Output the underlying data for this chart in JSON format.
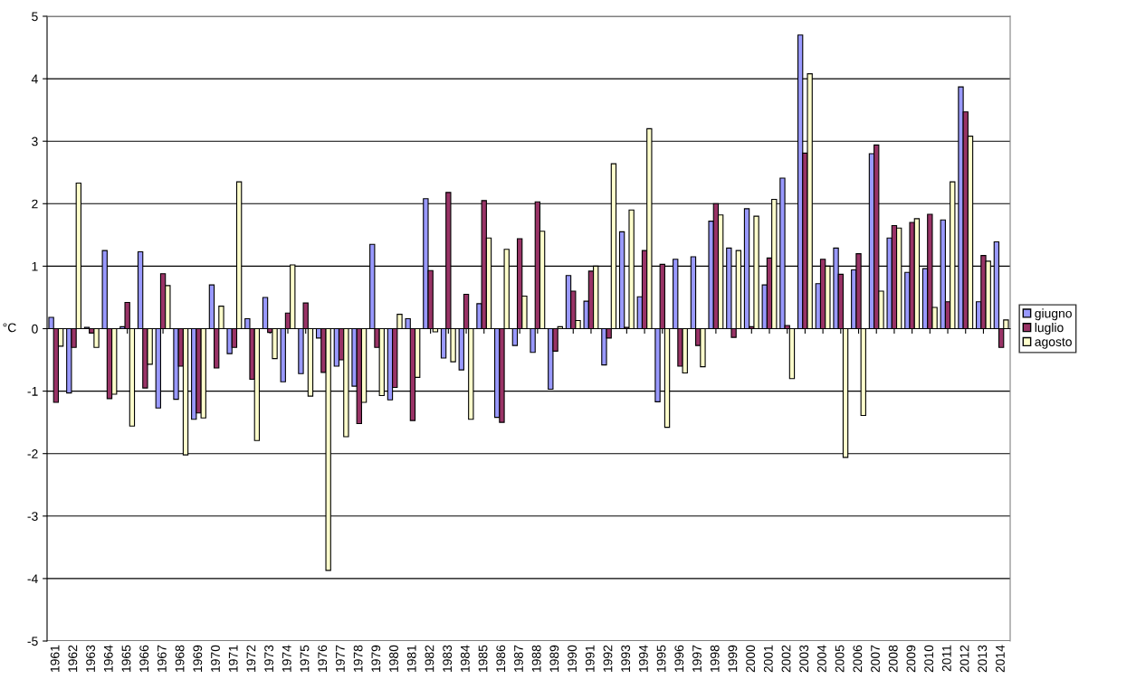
{
  "chart_data": {
    "type": "bar",
    "ylabel": "°C",
    "categories": [
      "1961",
      "1962",
      "1963",
      "1964",
      "1965",
      "1966",
      "1967",
      "1968",
      "1969",
      "1970",
      "1971",
      "1972",
      "1973",
      "1974",
      "1975",
      "1976",
      "1977",
      "1978",
      "1979",
      "1980",
      "1981",
      "1982",
      "1983",
      "1984",
      "1985",
      "1986",
      "1987",
      "1988",
      "1989",
      "1990",
      "1991",
      "1992",
      "1993",
      "1994",
      "1995",
      "1996",
      "1997",
      "1998",
      "1999",
      "2000",
      "2001",
      "2002",
      "2003",
      "2004",
      "2005",
      "2006",
      "2007",
      "2008",
      "2009",
      "2010",
      "2011",
      "2012",
      "2013",
      "2014"
    ],
    "series": [
      {
        "name": "giugno",
        "color": "#9999ff",
        "values": [
          0.18,
          -1.03,
          0.02,
          1.25,
          0.03,
          1.23,
          -1.27,
          -1.13,
          -1.45,
          0.7,
          -0.4,
          0.16,
          0.5,
          -0.85,
          -0.72,
          -0.15,
          -0.6,
          -0.92,
          1.35,
          -1.14,
          0.16,
          2.08,
          -0.47,
          -0.66,
          0.4,
          -1.42,
          -0.27,
          -0.38,
          -0.97,
          0.85,
          0.44,
          -0.58,
          1.55,
          0.51,
          -1.17,
          1.11,
          1.15,
          1.72,
          1.29,
          1.92,
          0.7,
          2.41,
          4.7,
          0.72,
          1.29,
          0.94,
          2.8,
          1.45,
          0.9,
          0.96,
          1.74,
          3.87,
          0.43,
          1.39
        ]
      },
      {
        "name": "luglio",
        "color": "#993366",
        "values": [
          -1.18,
          -0.3,
          -0.07,
          -1.12,
          0.42,
          -0.95,
          0.88,
          -0.6,
          -1.35,
          -0.63,
          -0.3,
          -0.81,
          -0.06,
          0.25,
          0.41,
          -0.7,
          -0.5,
          -1.52,
          -0.3,
          -0.94,
          -1.47,
          0.93,
          2.18,
          0.55,
          2.05,
          -1.5,
          1.44,
          2.03,
          -0.36,
          0.6,
          0.92,
          -0.15,
          0.02,
          1.25,
          1.03,
          -0.6,
          -0.27,
          2.0,
          -0.14,
          0.03,
          1.13,
          0.05,
          2.81,
          1.11,
          0.87,
          1.2,
          2.94,
          1.65,
          1.7,
          1.83,
          0.43,
          3.47,
          1.17,
          -0.3
        ]
      },
      {
        "name": "agosto",
        "color": "#ffffcc",
        "values": [
          -0.28,
          2.33,
          -0.3,
          -1.05,
          -1.56,
          -0.57,
          0.69,
          -2.02,
          -1.43,
          0.36,
          2.35,
          -1.79,
          -0.48,
          1.02,
          -1.08,
          -3.87,
          -1.73,
          -1.18,
          -1.07,
          0.23,
          -0.78,
          -0.05,
          -0.53,
          -1.45,
          1.45,
          1.27,
          0.52,
          1.56,
          0.03,
          0.13,
          1.0,
          2.64,
          1.9,
          3.2,
          -1.58,
          -0.71,
          -0.61,
          1.82,
          1.25,
          1.8,
          2.07,
          -0.8,
          4.08,
          1.0,
          -2.06,
          -1.39,
          0.6,
          1.61,
          1.76,
          0.34,
          2.35,
          3.08,
          1.08,
          0.14
        ]
      }
    ],
    "ylim": [
      -5,
      5
    ],
    "yticks": [
      -5,
      -4,
      -3,
      -2,
      -1,
      0,
      1,
      2,
      3,
      4,
      5
    ],
    "grid": "y",
    "legend": "right"
  }
}
